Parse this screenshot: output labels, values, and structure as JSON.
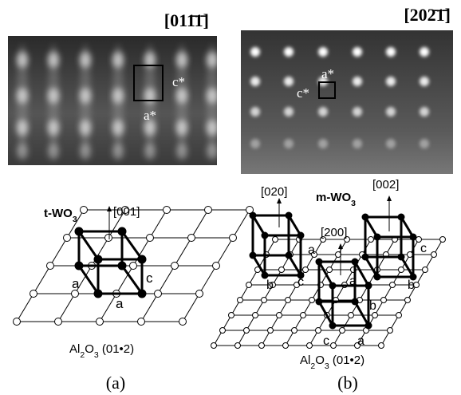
{
  "panel_a": {
    "zone_axis": "[011̄1̄]",
    "pattern_labels": [
      "c*",
      "a*"
    ],
    "phase": [
      "t-WO",
      "3"
    ],
    "direction": "[001]",
    "axis_labels": [
      "a",
      "c",
      "a"
    ],
    "substrate": [
      "Al",
      "2",
      "O",
      "3",
      " (01•2)"
    ],
    "caption": "(a)"
  },
  "panel_b": {
    "zone_axis": "[202̄1̄]",
    "pattern_labels": [
      "a*",
      "c*"
    ],
    "phase": [
      "m-WO",
      "3"
    ],
    "directions": [
      "[020]",
      "[002]",
      "[200]"
    ],
    "axis_labels": [
      "a",
      "c",
      "b",
      "c",
      "a",
      "b",
      "b",
      "c",
      "a"
    ],
    "substrate": [
      "Al",
      "2",
      "O",
      "3",
      " (01•2)"
    ],
    "caption": "(b)"
  }
}
